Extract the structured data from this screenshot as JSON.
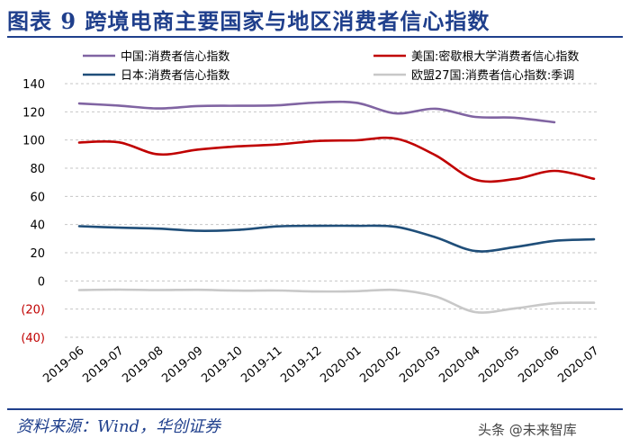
{
  "header": {
    "title": "图表 9    跨境电商主要国家与地区消费者信心指数"
  },
  "footer": {
    "source": "资料来源：Wind，华创证券",
    "watermark": "头条 @未来智库"
  },
  "chart_data": {
    "type": "line",
    "title": "跨境电商主要国家与地区消费者信心指数",
    "xlabel": "",
    "ylabel": "",
    "ylim": [
      -40,
      140
    ],
    "yticks": [
      {
        "value": 140,
        "label": "140"
      },
      {
        "value": 120,
        "label": "120"
      },
      {
        "value": 100,
        "label": "100"
      },
      {
        "value": 80,
        "label": "80"
      },
      {
        "value": 60,
        "label": "60"
      },
      {
        "value": 40,
        "label": "40"
      },
      {
        "value": 20,
        "label": "20"
      },
      {
        "value": 0,
        "label": "0"
      },
      {
        "value": -20,
        "label": "(20)"
      },
      {
        "value": -40,
        "label": "(40)"
      }
    ],
    "grid": true,
    "legend_position": "top",
    "categories": [
      "2019-06",
      "2019-07",
      "2019-08",
      "2019-09",
      "2019-10",
      "2019-11",
      "2019-12",
      "2020-01",
      "2020-02",
      "2020-03",
      "2020-04",
      "2020-05",
      "2020-06",
      "2020-07"
    ],
    "series": [
      {
        "name": "中国:消费者信心指数",
        "color": "#8064a2",
        "values": [
          125.9,
          124.4,
          122.4,
          124.1,
          124.3,
          124.6,
          126.6,
          126.4,
          118.9,
          122.2,
          116.4,
          115.8,
          112.6,
          null
        ]
      },
      {
        "name": "美国:密歇根大学消费者信心指数",
        "color": "#c00000",
        "values": [
          98.2,
          98.4,
          89.8,
          93.2,
          95.5,
          96.8,
          99.3,
          99.8,
          101.0,
          89.1,
          71.8,
          72.3,
          78.1,
          72.5
        ]
      },
      {
        "name": "日本:消费者信心指数",
        "color": "#1f4e79",
        "values": [
          38.8,
          37.8,
          37.1,
          35.6,
          36.2,
          38.7,
          39.1,
          39.1,
          38.4,
          30.9,
          21.2,
          24.0,
          28.4,
          29.5
        ]
      },
      {
        "name": "欧盟27国:消费者信心指数:季调",
        "color": "#c8c8c8",
        "values": [
          -6.5,
          -6.2,
          -6.5,
          -6.3,
          -6.9,
          -6.8,
          -7.5,
          -7.3,
          -6.4,
          -11.0,
          -22.1,
          -19.5,
          -15.9,
          -15.5
        ]
      }
    ]
  }
}
